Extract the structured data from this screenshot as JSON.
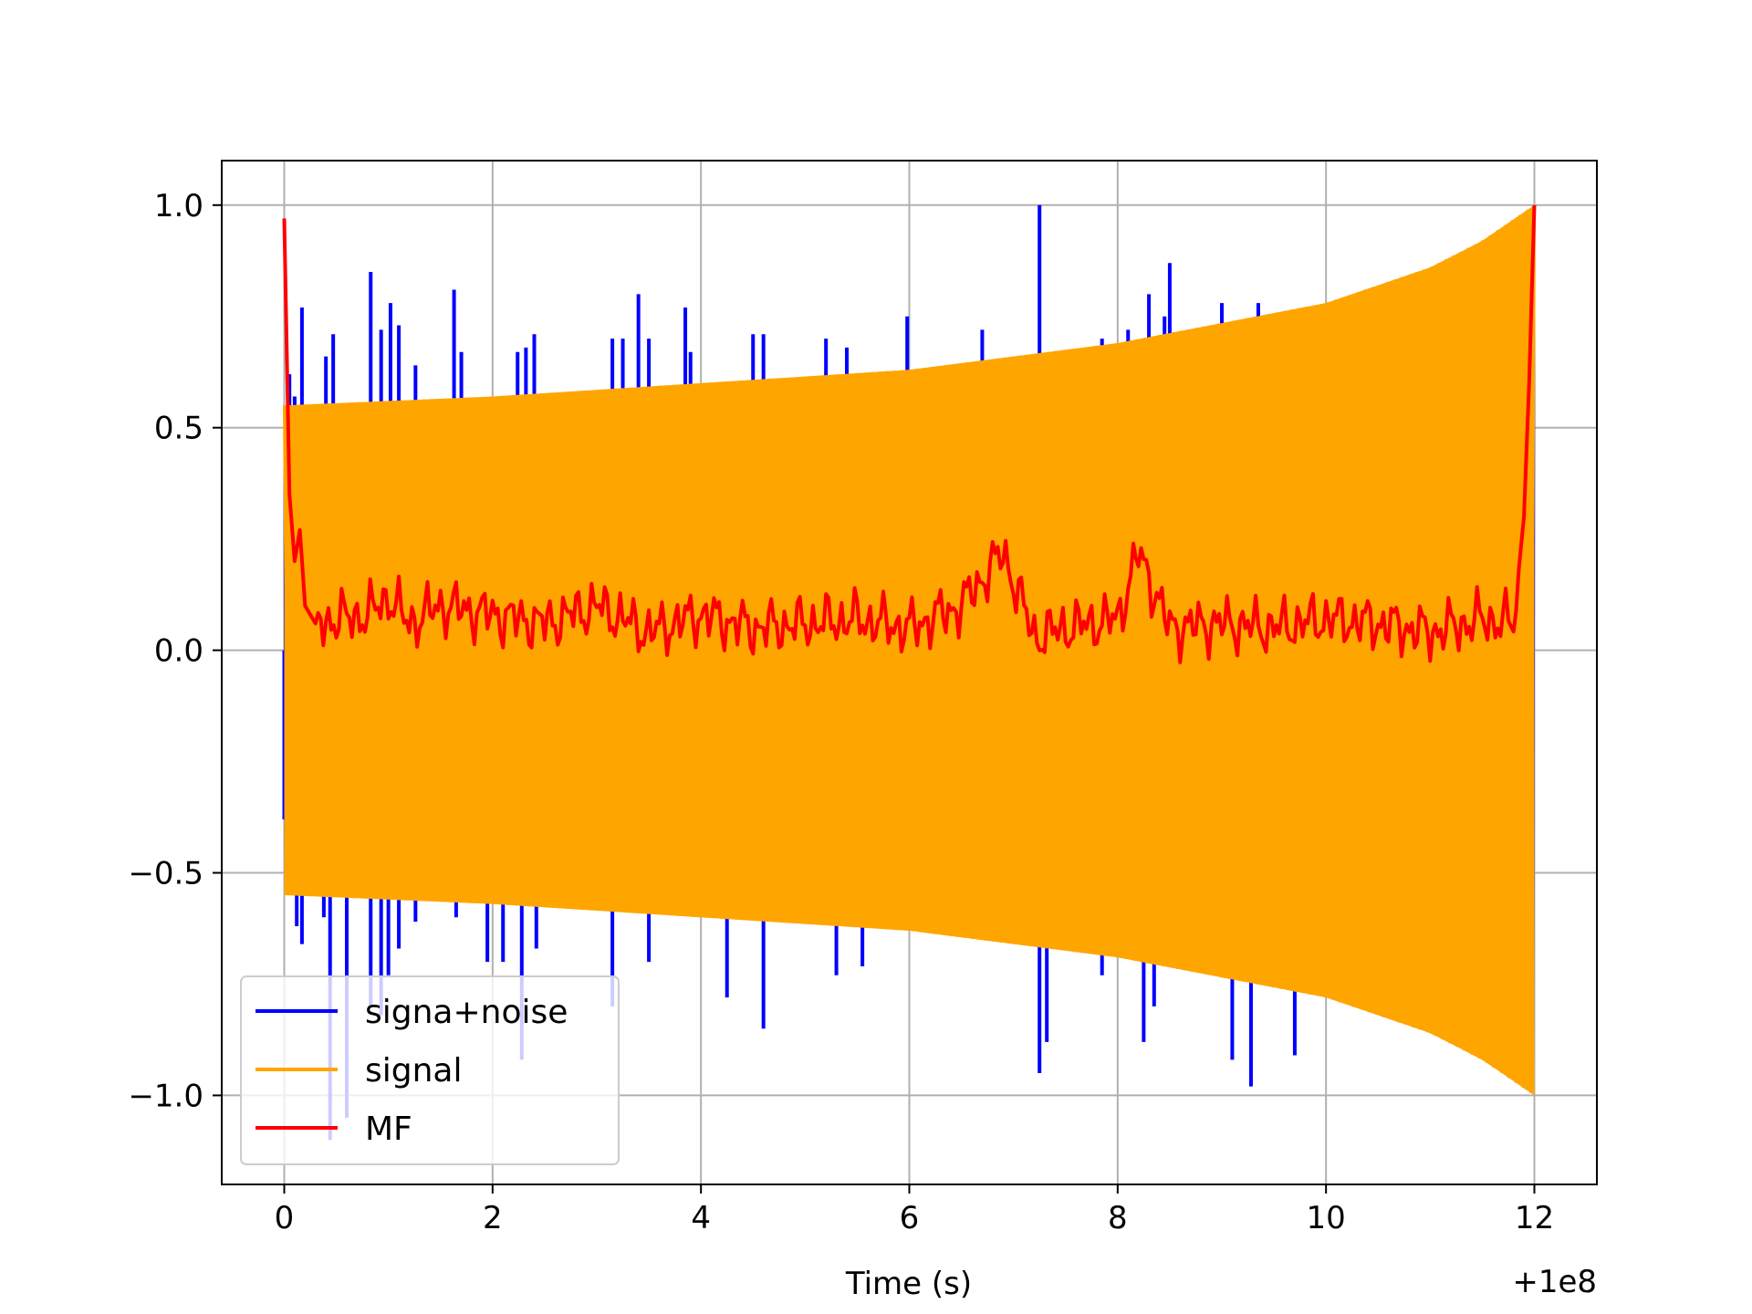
{
  "chart_data": {
    "type": "line",
    "title": "",
    "xlabel": "Time (s)",
    "ylabel": "",
    "x_offset_label": "+1e8",
    "xlim": [
      -0.6,
      12.6
    ],
    "ylim": [
      -1.2,
      1.1
    ],
    "xticks": [
      0,
      2,
      4,
      6,
      8,
      10,
      12
    ],
    "xtick_labels": [
      "0",
      "2",
      "4",
      "6",
      "8",
      "10",
      "12"
    ],
    "yticks": [
      -1.0,
      -0.5,
      0.0,
      0.5,
      1.0
    ],
    "ytick_labels": [
      "−1.0",
      "−0.5",
      "0.0",
      "0.5",
      "1.0"
    ],
    "grid": true,
    "legend_position": "lower-left",
    "colors": {
      "signal_noise": "#0000ff",
      "signal": "#ffa500",
      "mf": "#ff0000",
      "grid": "#b0b0b0"
    },
    "series": [
      {
        "name": "signa+noise",
        "color": "#0000ff",
        "spikes": [
          {
            "x": 0.05,
            "y": 0.62
          },
          {
            "x": 0.1,
            "y": 0.57
          },
          {
            "x": 0.17,
            "y": 0.77
          },
          {
            "x": 0.4,
            "y": 0.66
          },
          {
            "x": 0.47,
            "y": 0.71
          },
          {
            "x": 0.83,
            "y": 0.85
          },
          {
            "x": 0.93,
            "y": 0.72
          },
          {
            "x": 1.02,
            "y": 0.78
          },
          {
            "x": 1.1,
            "y": 0.73
          },
          {
            "x": 1.26,
            "y": 0.64
          },
          {
            "x": 1.63,
            "y": 0.81
          },
          {
            "x": 1.7,
            "y": 0.67
          },
          {
            "x": 2.1,
            "y": 0.55
          },
          {
            "x": 2.24,
            "y": 0.67
          },
          {
            "x": 2.32,
            "y": 0.68
          },
          {
            "x": 2.4,
            "y": 0.71
          },
          {
            "x": 3.15,
            "y": 0.7
          },
          {
            "x": 3.25,
            "y": 0.7
          },
          {
            "x": 3.4,
            "y": 0.8
          },
          {
            "x": 3.5,
            "y": 0.7
          },
          {
            "x": 3.85,
            "y": 0.77
          },
          {
            "x": 3.9,
            "y": 0.67
          },
          {
            "x": 4.5,
            "y": 0.71
          },
          {
            "x": 4.6,
            "y": 0.71
          },
          {
            "x": 5.2,
            "y": 0.7
          },
          {
            "x": 5.4,
            "y": 0.68
          },
          {
            "x": 5.98,
            "y": 0.75
          },
          {
            "x": 6.7,
            "y": 0.72
          },
          {
            "x": 7.25,
            "y": 1.0
          },
          {
            "x": 7.3,
            "y": 0.66
          },
          {
            "x": 7.85,
            "y": 0.7
          },
          {
            "x": 8.1,
            "y": 0.72
          },
          {
            "x": 8.2,
            "y": 0.69
          },
          {
            "x": 8.3,
            "y": 0.8
          },
          {
            "x": 8.45,
            "y": 0.75
          },
          {
            "x": 8.5,
            "y": 0.87
          },
          {
            "x": 9.0,
            "y": 0.78
          },
          {
            "x": 9.35,
            "y": 0.78
          },
          {
            "x": 0.0,
            "y": -0.38
          },
          {
            "x": 0.12,
            "y": -0.62
          },
          {
            "x": 0.17,
            "y": -0.66
          },
          {
            "x": 0.38,
            "y": -0.6
          },
          {
            "x": 0.44,
            "y": -1.1
          },
          {
            "x": 0.6,
            "y": -1.05
          },
          {
            "x": 0.83,
            "y": -0.8
          },
          {
            "x": 0.93,
            "y": -0.82
          },
          {
            "x": 1.0,
            "y": -0.73
          },
          {
            "x": 1.1,
            "y": -0.67
          },
          {
            "x": 1.26,
            "y": -0.61
          },
          {
            "x": 1.65,
            "y": -0.6
          },
          {
            "x": 1.95,
            "y": -0.7
          },
          {
            "x": 2.1,
            "y": -0.7
          },
          {
            "x": 2.28,
            "y": -0.92
          },
          {
            "x": 2.42,
            "y": -0.67
          },
          {
            "x": 3.15,
            "y": -0.8
          },
          {
            "x": 3.5,
            "y": -0.7
          },
          {
            "x": 4.25,
            "y": -0.78
          },
          {
            "x": 4.6,
            "y": -0.85
          },
          {
            "x": 5.3,
            "y": -0.73
          },
          {
            "x": 5.55,
            "y": -0.71
          },
          {
            "x": 7.25,
            "y": -0.95
          },
          {
            "x": 7.32,
            "y": -0.88
          },
          {
            "x": 7.85,
            "y": -0.73
          },
          {
            "x": 8.25,
            "y": -0.88
          },
          {
            "x": 8.35,
            "y": -0.8
          },
          {
            "x": 9.1,
            "y": -0.92
          },
          {
            "x": 9.28,
            "y": -0.98
          },
          {
            "x": 9.7,
            "y": -0.91
          }
        ]
      },
      {
        "name": "signal",
        "color": "#ffa500",
        "description_x": [
          0,
          2,
          4,
          6,
          8,
          10,
          11,
          11.5,
          12
        ],
        "envelope": [
          0.55,
          0.57,
          0.6,
          0.63,
          0.69,
          0.78,
          0.86,
          0.92,
          1.0
        ]
      },
      {
        "name": "MF",
        "color": "#ff0000",
        "x": [
          0,
          0.05,
          0.1,
          0.15,
          0.2,
          0.3,
          0.5,
          0.8,
          1.0,
          1.2,
          1.5,
          2.0,
          2.5,
          3.0,
          3.5,
          4.0,
          4.5,
          5.0,
          5.5,
          6.0,
          6.5,
          6.9,
          7.2,
          7.5,
          8.0,
          8.2,
          8.5,
          9.0,
          9.5,
          10.0,
          10.5,
          11.0,
          11.5,
          11.8,
          11.9,
          11.95,
          12.0
        ],
        "values": [
          0.97,
          0.35,
          0.2,
          0.27,
          0.1,
          0.06,
          0.07,
          0.08,
          0.12,
          0.06,
          0.1,
          0.08,
          0.06,
          0.1,
          0.04,
          0.08,
          0.05,
          0.06,
          0.07,
          0.05,
          0.1,
          0.22,
          0.03,
          0.05,
          0.07,
          0.22,
          0.05,
          0.06,
          0.05,
          0.07,
          0.06,
          0.04,
          0.07,
          0.06,
          0.3,
          0.6,
          1.0
        ]
      }
    ]
  }
}
